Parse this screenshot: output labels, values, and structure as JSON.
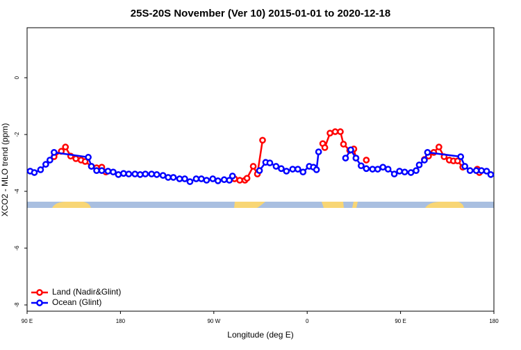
{
  "chart_data": {
    "type": "line",
    "title": "25S-20S November (Ver 10)   2015-01-01 to 2020-12-18",
    "x_label": "Longitude (deg E)",
    "y_label": "XCO2 - MLO trend (ppm)",
    "xlim": [
      90,
      540
    ],
    "ylim": [
      -8.22,
      1.76
    ],
    "xticks": [
      {
        "value": 90,
        "label": "90 E"
      },
      {
        "value": 180,
        "label": "180"
      },
      {
        "value": 270,
        "label": "90 W"
      },
      {
        "value": 360,
        "label": "0"
      },
      {
        "value": 450,
        "label": "90 E"
      },
      {
        "value": 540,
        "label": "180"
      }
    ],
    "yticks": [
      0,
      -2,
      -4,
      -6,
      -8
    ],
    "legend": "bottomleft",
    "series": [
      {
        "name": "Land (Nadir&Glint)",
        "color": "#ff0000",
        "x": [
          116,
          123,
          127,
          132,
          137,
          142,
          146,
          152,
          157,
          162,
          166,
          null,
          290,
          295,
          300,
          302,
          308,
          312,
          317,
          null,
          375,
          377,
          382,
          387,
          392,
          395,
          401,
          405,
          407,
          null,
          417,
          null,
          473,
          477,
          482,
          487,
          492,
          497,
          501,
          505,
          510,
          null,
          524,
          526
        ],
        "values": [
          -2.78,
          -2.59,
          -2.44,
          -2.76,
          -2.85,
          -2.9,
          -2.95,
          -3.12,
          -3.17,
          -3.15,
          -3.32,
          null,
          -3.56,
          -3.61,
          -3.61,
          -3.54,
          -3.12,
          -3.39,
          -2.2,
          null,
          -2.32,
          -2.46,
          -1.95,
          -1.9,
          -1.9,
          -2.34,
          -2.56,
          -2.51,
          -2.83,
          null,
          -2.9,
          null,
          -2.88,
          -2.76,
          -2.63,
          -2.44,
          -2.78,
          -2.9,
          -2.93,
          -2.93,
          -3.15,
          null,
          -3.22,
          -3.34
        ]
      },
      {
        "name": "Ocean (Glint)",
        "color": "#0000ff",
        "x": [
          93,
          97,
          103,
          108,
          112,
          116,
          149,
          152,
          157,
          162,
          168,
          173,
          178,
          183,
          188,
          194,
          199,
          204,
          210,
          215,
          221,
          226,
          231,
          237,
          242,
          247,
          253,
          258,
          263,
          269,
          274,
          280,
          285,
          288,
          null,
          314,
          320,
          324,
          330,
          335,
          340,
          346,
          351,
          356,
          362,
          366,
          369,
          371,
          null,
          397,
          402,
          407,
          412,
          417,
          423,
          428,
          433,
          438,
          444,
          449,
          454,
          460,
          465,
          468,
          473,
          476,
          508,
          512,
          517,
          523,
          528,
          533,
          537
        ],
        "values": [
          -3.29,
          -3.34,
          -3.24,
          -3.05,
          -2.9,
          -2.63,
          -2.8,
          -3.12,
          -3.27,
          -3.27,
          -3.29,
          -3.32,
          -3.41,
          -3.37,
          -3.39,
          -3.39,
          -3.41,
          -3.39,
          -3.39,
          -3.41,
          -3.44,
          -3.51,
          -3.51,
          -3.56,
          -3.56,
          -3.66,
          -3.56,
          -3.56,
          -3.61,
          -3.56,
          -3.63,
          -3.59,
          -3.61,
          -3.46,
          null,
          -3.27,
          -2.98,
          -3.0,
          -3.12,
          -3.2,
          -3.29,
          -3.22,
          -3.22,
          -3.32,
          -3.12,
          -3.15,
          -3.24,
          -2.61,
          null,
          -2.83,
          -2.54,
          -2.83,
          -3.1,
          -3.2,
          -3.22,
          -3.22,
          -3.15,
          -3.22,
          -3.39,
          -3.29,
          -3.32,
          -3.34,
          -3.27,
          -3.07,
          -2.9,
          -2.63,
          -2.78,
          -3.12,
          -3.27,
          -3.27,
          -3.27,
          -3.29,
          -3.41
        ]
      }
    ]
  }
}
